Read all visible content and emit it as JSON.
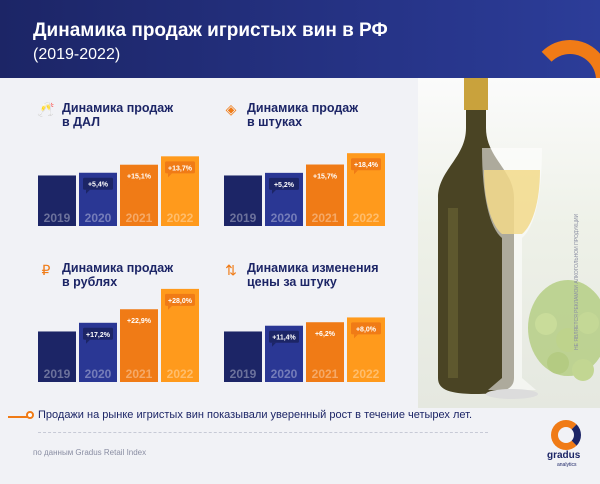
{
  "header": {
    "title": "Динамика продаж игристых вин в РФ",
    "subtitle": "(2019-2022)"
  },
  "side_text": "НЕ ЯВЛЯЕТСЯ РЕКЛАМОЙ АЛКОГОЛЬНОЙ ПРОДУКЦИИ",
  "note": "Продажи на рынке игристых вин показывали уверенный рост в течение четырех лет.",
  "source": "по данным Gradus Retail Index",
  "logo": {
    "name": "gradus",
    "tagline": "analytics"
  },
  "colors": {
    "navy": "#1c2566",
    "blue": "#2a3794",
    "orange": "#f07b16",
    "orange_light": "#ff9a1c"
  },
  "chart_data": [
    {
      "type": "bar",
      "title": "Динамика продаж\nв ДАЛ",
      "icon": "wine-glasses-icon",
      "categories": [
        "2019",
        "2020",
        "2021",
        "2022"
      ],
      "values": [
        100,
        105.4,
        121.3,
        137.9
      ],
      "labels": [
        "",
        "+5,4%",
        "+15,1%",
        "+13,7%"
      ]
    },
    {
      "type": "bar",
      "title": "Динамика продаж\nв штуках",
      "icon": "box-icon",
      "categories": [
        "2019",
        "2020",
        "2021",
        "2022"
      ],
      "values": [
        100,
        105.2,
        121.7,
        144.1
      ],
      "labels": [
        "",
        "+5,2%",
        "+15,7%",
        "+18,4%"
      ]
    },
    {
      "type": "bar",
      "title": "Динамика продаж\nв рублях",
      "icon": "ruble-coin-icon",
      "categories": [
        "2019",
        "2020",
        "2021",
        "2022"
      ],
      "values": [
        100,
        117.2,
        144.0,
        184.3
      ],
      "labels": [
        "",
        "+17,2%",
        "+22,9%",
        "+28,0%"
      ]
    },
    {
      "type": "bar",
      "title": "Динамика изменения\nцены за штуку",
      "icon": "up-down-arrows-icon",
      "categories": [
        "2019",
        "2020",
        "2021",
        "2022"
      ],
      "values": [
        100,
        111.4,
        118.3,
        127.8
      ],
      "labels": [
        "",
        "+11,4%",
        "+6,2%",
        "+8,0%"
      ]
    }
  ]
}
